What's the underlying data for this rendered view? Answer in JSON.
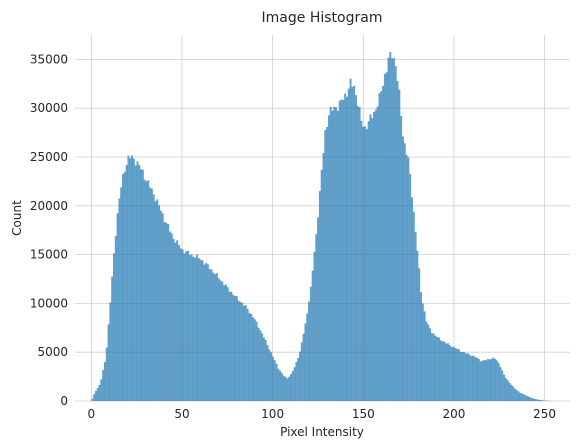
{
  "chart_data": {
    "type": "bar",
    "title": "Image Histogram",
    "xlabel": "Pixel Intensity",
    "ylabel": "Count",
    "xlim": [
      -9,
      264
    ],
    "ylim": [
      0,
      37500
    ],
    "xticks": [
      0,
      50,
      100,
      150,
      200,
      250
    ],
    "yticks": [
      0,
      5000,
      10000,
      15000,
      20000,
      25000,
      30000,
      35000
    ],
    "xtick_labels": [
      "0",
      "50",
      "100",
      "150",
      "200",
      "250"
    ],
    "ytick_labels": [
      "0",
      "5000",
      "10000",
      "15000",
      "20000",
      "25000",
      "30000",
      "35000"
    ],
    "grid": true,
    "style": "seaborn-whitegrid",
    "bar_color": "#1f77b4",
    "bar_alpha": 0.7,
    "bins": 256,
    "control_points": [
      [
        0,
        0
      ],
      [
        2,
        900
      ],
      [
        5,
        1800
      ],
      [
        8,
        4500
      ],
      [
        10,
        9000
      ],
      [
        12,
        14000
      ],
      [
        14,
        18500
      ],
      [
        16,
        21500
      ],
      [
        18,
        23500
      ],
      [
        20,
        24800
      ],
      [
        22,
        25000
      ],
      [
        24,
        24700
      ],
      [
        26,
        24200
      ],
      [
        28,
        23600
      ],
      [
        30,
        22800
      ],
      [
        35,
        21000
      ],
      [
        40,
        18800
      ],
      [
        45,
        16800
      ],
      [
        50,
        15500
      ],
      [
        55,
        15000
      ],
      [
        60,
        14600
      ],
      [
        65,
        13700
      ],
      [
        70,
        12700
      ],
      [
        75,
        11600
      ],
      [
        80,
        10600
      ],
      [
        85,
        9700
      ],
      [
        90,
        8400
      ],
      [
        95,
        6600
      ],
      [
        100,
        4600
      ],
      [
        103,
        3400
      ],
      [
        106,
        2600
      ],
      [
        108,
        2300
      ],
      [
        110,
        2700
      ],
      [
        112,
        3400
      ],
      [
        115,
        5000
      ],
      [
        118,
        7800
      ],
      [
        121,
        11500
      ],
      [
        124,
        17000
      ],
      [
        127,
        23500
      ],
      [
        129,
        27500
      ],
      [
        131,
        29500
      ],
      [
        134,
        30000
      ],
      [
        137,
        30400
      ],
      [
        140,
        31300
      ],
      [
        143,
        32500
      ],
      [
        145,
        32200
      ],
      [
        147,
        30600
      ],
      [
        149,
        28500
      ],
      [
        151,
        28000
      ],
      [
        153,
        28600
      ],
      [
        156,
        29600
      ],
      [
        159,
        31000
      ],
      [
        162,
        33500
      ],
      [
        164,
        35000
      ],
      [
        166,
        35600
      ],
      [
        168,
        34400
      ],
      [
        170,
        31000
      ],
      [
        172,
        27000
      ],
      [
        175,
        24500
      ],
      [
        178,
        19000
      ],
      [
        180,
        15000
      ],
      [
        182,
        10800
      ],
      [
        185,
        8000
      ],
      [
        188,
        7000
      ],
      [
        191,
        6500
      ],
      [
        195,
        6000
      ],
      [
        200,
        5500
      ],
      [
        205,
        5000
      ],
      [
        208,
        4800
      ],
      [
        212,
        4500
      ],
      [
        215,
        4100
      ],
      [
        218,
        4200
      ],
      [
        221,
        4400
      ],
      [
        223,
        4300
      ],
      [
        225,
        3800
      ],
      [
        228,
        2500
      ],
      [
        231,
        1800
      ],
      [
        234,
        1200
      ],
      [
        237,
        800
      ],
      [
        240,
        550
      ],
      [
        243,
        300
      ],
      [
        246,
        150
      ],
      [
        250,
        40
      ],
      [
        255,
        0
      ]
    ]
  }
}
